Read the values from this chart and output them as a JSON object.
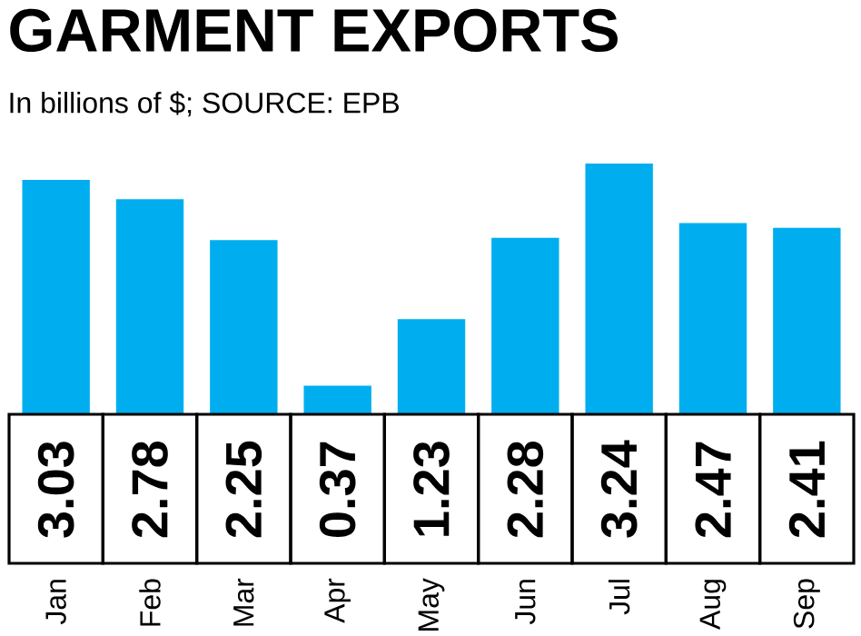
{
  "chart_data": {
    "type": "bar",
    "title": "GARMENT EXPORTS",
    "subtitle": "In billions of $; SOURCE: EPB",
    "categories": [
      "Jan",
      "Feb",
      "Mar",
      "Apr",
      "May",
      "Jun",
      "Jul",
      "Aug",
      "Sep"
    ],
    "values": [
      3.03,
      2.78,
      2.25,
      0.37,
      1.23,
      2.28,
      3.24,
      2.47,
      2.41
    ],
    "color": "#00aeef",
    "data_labels": true
  }
}
